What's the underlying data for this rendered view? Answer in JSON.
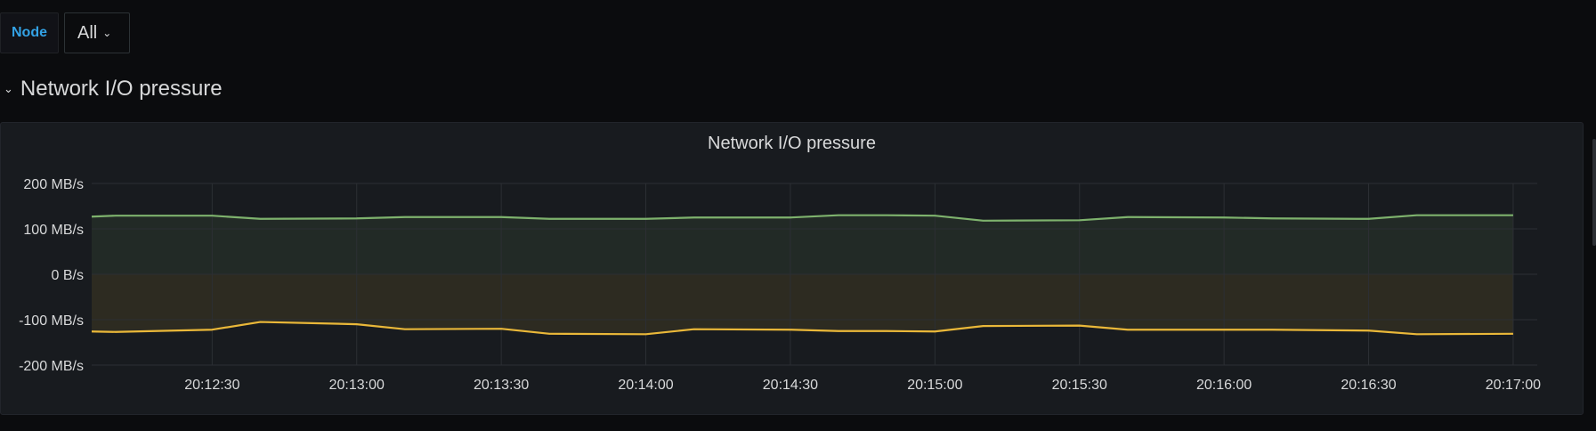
{
  "variables": {
    "node_label": "Node",
    "node_value": "All"
  },
  "row": {
    "title": "Network I/O pressure"
  },
  "panel": {
    "title": "Network I/O pressure"
  },
  "colors": {
    "received": "#7eb26d",
    "transmitted": "#eab839",
    "grid": "#2c2f34",
    "text": "#d8d9da"
  },
  "chart_data": {
    "type": "line",
    "title": "Network I/O pressure",
    "ylim": [
      -200,
      200
    ],
    "y_ticks": [
      200,
      100,
      0,
      -100,
      -200
    ],
    "y_tick_labels": [
      "200 MB/s",
      "100 MB/s",
      "0 B/s",
      "-100 MB/s",
      "-200 MB/s"
    ],
    "x_range": [
      "20:12:05",
      "20:17:05"
    ],
    "x_ticks": [
      "20:12:30",
      "20:13:00",
      "20:13:30",
      "20:14:00",
      "20:14:30",
      "20:15:00",
      "20:15:30",
      "20:16:00",
      "20:16:30",
      "20:17:00"
    ],
    "grid": true,
    "fill_below": true,
    "x": [
      "20:12:05",
      "20:12:10",
      "20:12:30",
      "20:12:40",
      "20:13:00",
      "20:13:10",
      "20:13:30",
      "20:13:40",
      "20:14:00",
      "20:14:10",
      "20:14:30",
      "20:14:40",
      "20:14:50",
      "20:15:00",
      "20:15:10",
      "20:15:30",
      "20:15:40",
      "20:16:00",
      "20:16:10",
      "20:16:30",
      "20:16:40",
      "20:17:00"
    ],
    "series": [
      {
        "color": "#7eb26d",
        "values": [
          127,
          129,
          129,
          122,
          123,
          126,
          126,
          122,
          122,
          125,
          125,
          130,
          130,
          129,
          118,
          119,
          126,
          125,
          123,
          122,
          130,
          130
        ]
      },
      {
        "color": "#eab839",
        "values": [
          -126,
          -127,
          -122,
          -105,
          -110,
          -121,
          -120,
          -131,
          -132,
          -121,
          -122,
          -125,
          -125,
          -126,
          -114,
          -113,
          -122,
          -122,
          -122,
          -124,
          -132,
          -131
        ]
      }
    ]
  }
}
